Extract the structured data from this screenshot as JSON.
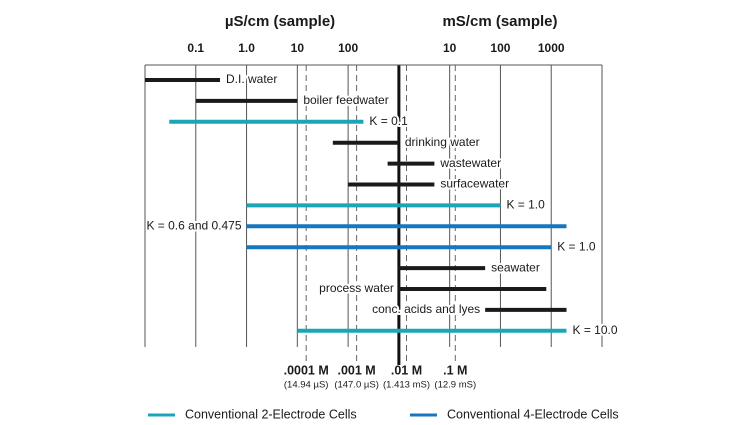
{
  "chart_data": {
    "type": "range",
    "axis_titles": [
      "µS/cm (sample)",
      "mS/cm (sample)"
    ],
    "xlim": [
      0.01,
      10000000
    ],
    "log_scale": true,
    "xticks": [
      0.1,
      {
        "value": 1,
        "label": "1.0"
      },
      10,
      100,
      {
        "value": 10000,
        "label": "10"
      },
      {
        "value": 100000,
        "label": "100"
      },
      {
        "value": 1000000,
        "label": "1000"
      }
    ],
    "xgrid": [
      0.01,
      0.1,
      1,
      10,
      100,
      1000,
      10000,
      100000,
      1000000,
      10000000
    ],
    "ranges": [
      {
        "label": "D.I. water",
        "low": 0.01,
        "high": 0.3,
        "color": "#1a1a1a"
      },
      {
        "label": "boiler feedwater",
        "low": 0.1,
        "high": 10,
        "color": "#1a1a1a"
      },
      {
        "label": "K = 0.1",
        "low": 0.03,
        "high": 200,
        "color": "#1ba5b8"
      },
      {
        "label": "drinking water",
        "low": 50,
        "high": 1000,
        "color": "#1a1a1a"
      },
      {
        "label": "wastewater",
        "low": 600,
        "high": 5000,
        "color": "#1a1a1a"
      },
      {
        "label": "surfacewater",
        "low": 100,
        "high": 5000,
        "color": "#1a1a1a"
      },
      {
        "label": "K = 1.0",
        "low": 1,
        "high": 100000,
        "color": "#1ba5b8"
      },
      {
        "label": "K = 0.6 and 0.475",
        "low": 1,
        "high": 2000000,
        "color": "#1577c0"
      },
      {
        "label": "K = 1.0",
        "low": 1,
        "high": 1000000,
        "color": "#1577c0"
      },
      {
        "label": "seawater",
        "low": 1000,
        "high": 50000,
        "color": "#1a1a1a"
      },
      {
        "label": "process water",
        "low": 1000,
        "high": 800000,
        "color": "#1a1a1a"
      },
      {
        "label": "conc. acids and lyes",
        "low": 50000,
        "high": 2000000,
        "color": "#1a1a1a"
      },
      {
        "label": "K = 10.0",
        "low": 10,
        "high": 2000000,
        "color": "#1ba5b8"
      }
    ],
    "concentration_lines": [
      {
        "label": ".0001 M",
        "value_label": "(14.94 µS)",
        "value": 14.94
      },
      {
        "label": ".001 M",
        "value_label": "(147.0 µS)",
        "value": 147
      },
      {
        "label": ".01 M",
        "value_label": "(1.413 mS)",
        "value": 1413
      },
      {
        "label": ".1 M",
        "value_label": "(12.9 mS)",
        "value": 12900
      }
    ],
    "series": [
      {
        "name": "Conventional 2-Electrode Cells",
        "color": "#1ba5b8"
      },
      {
        "name": "Conventional 4-Electrode Cells",
        "color": "#1577c0"
      }
    ]
  }
}
